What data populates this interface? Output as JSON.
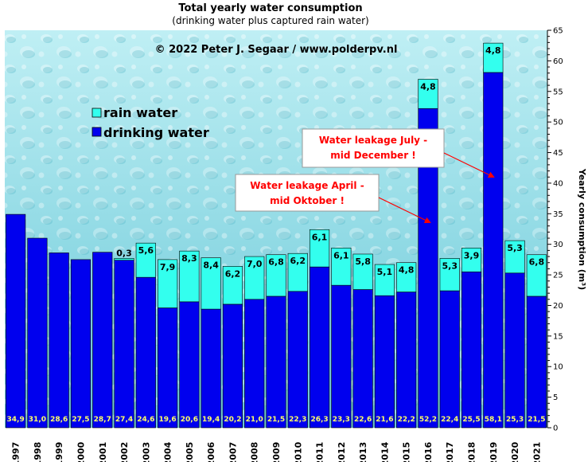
{
  "chart_data": {
    "type": "bar",
    "stacked": true,
    "title": "Total yearly water consumption",
    "subtitle": "(drinking  water plus captured rain  water)",
    "copyright": "© 2022  Peter  J.  Segaar  /  www.polderpv.nl",
    "ylabel": "Yearly consumption (m³)",
    "ylim": [
      0,
      65
    ],
    "ytick_step": 5,
    "grid": false,
    "legend_position": "top-left",
    "categories": [
      "1997",
      "1998",
      "1999",
      "2000",
      "2001",
      "2002",
      "2003",
      "2004",
      "2005",
      "2006",
      "2007",
      "2008",
      "2009",
      "2010",
      "2011",
      "2012",
      "2013",
      "2014",
      "2015",
      "2016",
      "2017",
      "2018",
      "2019",
      "2020",
      "2021"
    ],
    "series": [
      {
        "name": "drinking water",
        "color": "#0000ee",
        "values": [
          34.9,
          31.0,
          28.6,
          27.5,
          28.7,
          27.4,
          24.6,
          19.6,
          20.6,
          19.4,
          20.2,
          21.0,
          21.5,
          22.3,
          26.3,
          23.3,
          22.6,
          21.6,
          22.2,
          52.2,
          22.4,
          25.5,
          58.1,
          25.3,
          21.5
        ],
        "labels": [
          "34,9",
          "31,0",
          "28,6",
          "27,5",
          "28,7",
          "27,4",
          "24,6",
          "19,6",
          "20,6",
          "19,4",
          "20,2",
          "21,0",
          "21,5",
          "22,3",
          "26,3",
          "23,3",
          "22,6",
          "21,6",
          "22,2",
          "52,2",
          "22,4",
          "25,5",
          "58,1",
          "25,3",
          "21,5"
        ]
      },
      {
        "name": "rain water",
        "color": "#33ffee",
        "values": [
          0,
          0,
          0,
          0,
          0,
          0.3,
          5.6,
          7.9,
          8.3,
          8.4,
          6.2,
          7.0,
          6.8,
          6.2,
          6.1,
          6.1,
          5.8,
          5.1,
          4.8,
          4.8,
          5.3,
          3.9,
          4.8,
          5.3,
          6.8
        ],
        "labels": [
          "",
          "",
          "",
          "",
          "",
          "0,3",
          "5,6",
          "7,9",
          "8,3",
          "8,4",
          "6,2",
          "7,0",
          "6,8",
          "6,2",
          "6,1",
          "6,1",
          "5,8",
          "5,1",
          "4,8",
          "4,8",
          "5,3",
          "3,9",
          "4,8",
          "5,3",
          "6,8"
        ]
      }
    ],
    "annotations": [
      {
        "lines": [
          "Water leakage April -",
          "mid Oktober !"
        ],
        "target_category": "2016"
      },
      {
        "lines": [
          "Water leakage July -",
          "mid December !"
        ],
        "target_category": "2019"
      }
    ]
  }
}
